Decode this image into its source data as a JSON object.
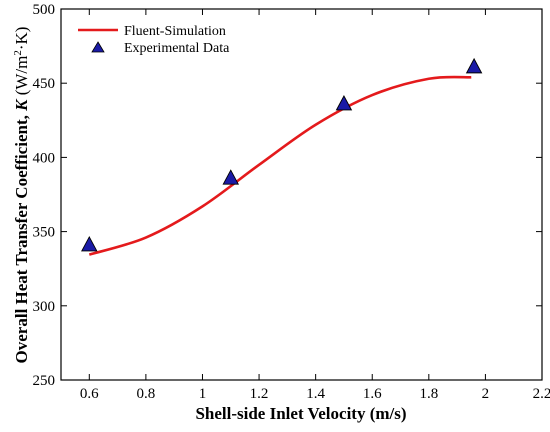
{
  "chart_data": {
    "type": "line",
    "xlabel": "Shell-side Inlet Velocity (m/s)",
    "ylabel": "Overall Heat Transfer Coefficient, K (W/m²·K)",
    "ylabel_prefix": "Overall Heat Transfer Coefficient, ",
    "ylabel_symbol": "K",
    "ylabel_unit_open": " (W/m",
    "ylabel_unit_sup": "2",
    "ylabel_unit_close": "·K)",
    "xlim": [
      0.5,
      2.2
    ],
    "ylim": [
      250,
      500
    ],
    "x_ticks": [
      0.6,
      0.8,
      1,
      1.2,
      1.4,
      1.6,
      1.8,
      2,
      2.2
    ],
    "x_tick_labels": [
      "0.6",
      "0.8",
      "1",
      "1.2",
      "1.4",
      "1.6",
      "1.8",
      "2",
      "2.2"
    ],
    "y_ticks": [
      250,
      300,
      350,
      400,
      450,
      500
    ],
    "y_tick_labels": [
      "250",
      "300",
      "350",
      "400",
      "450",
      "500"
    ],
    "grid": false,
    "legend_position": "top-left",
    "series": [
      {
        "name": "Fluent-Simulation",
        "kind": "line",
        "color": "#e41a1c",
        "x": [
          0.6,
          0.8,
          1.0,
          1.2,
          1.4,
          1.6,
          1.8,
          1.95
        ],
        "y": [
          334.5,
          346,
          367,
          395,
          422,
          442,
          453,
          454
        ]
      },
      {
        "name": "Experimental Data",
        "kind": "scatter",
        "marker": "triangle",
        "color": "#1a1aa6",
        "x": [
          0.6,
          1.1,
          1.5,
          1.96
        ],
        "y": [
          341,
          386,
          436,
          461
        ]
      }
    ]
  }
}
